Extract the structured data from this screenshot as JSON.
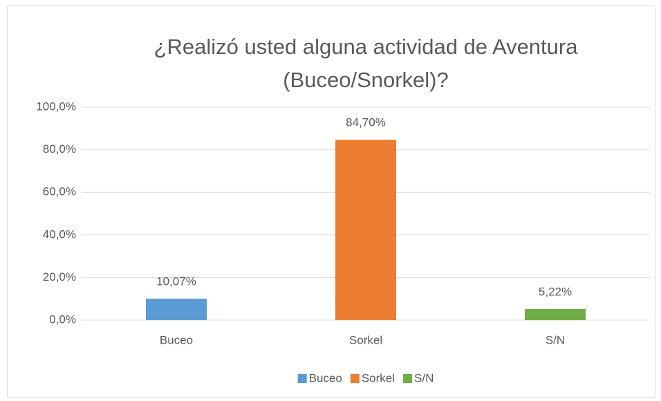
{
  "chart_data": {
    "type": "bar",
    "title": "¿Realizó usted alguna actividad de Aventura (Buceo/Snorkel)?",
    "categories": [
      "Buceo",
      "Sorkel",
      "S/N"
    ],
    "values": [
      10.07,
      84.7,
      5.22
    ],
    "value_labels": [
      "10,07%",
      "84,70%",
      "5,22%"
    ],
    "colors": [
      "#5b9bd5",
      "#ed7d31",
      "#70ad47"
    ],
    "ylim": [
      0,
      100
    ],
    "yticks": [
      {
        "value": 0,
        "label": "0,0%"
      },
      {
        "value": 20,
        "label": "20,0%"
      },
      {
        "value": 40,
        "label": "40,0%"
      },
      {
        "value": 60,
        "label": "60,0%"
      },
      {
        "value": 80,
        "label": "80,0%"
      },
      {
        "value": 100,
        "label": "100,0%"
      }
    ],
    "grid": true,
    "legend": "bottom"
  }
}
